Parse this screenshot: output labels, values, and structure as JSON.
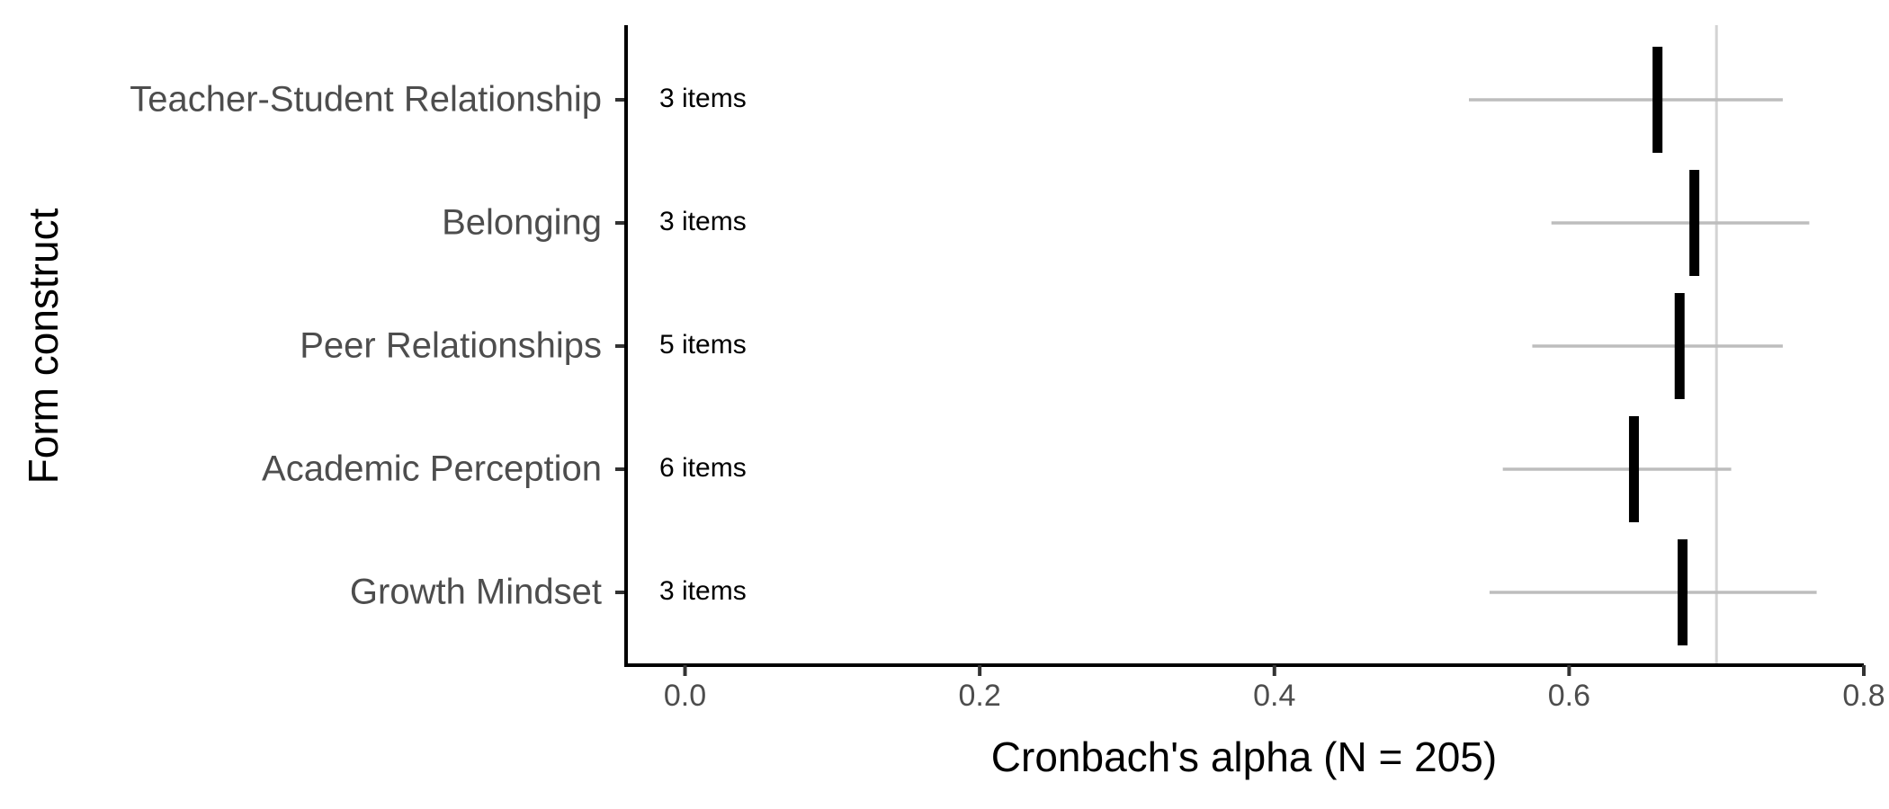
{
  "chart_data": {
    "type": "forest",
    "xlabel": "Cronbach's alpha (N = 205)",
    "ylabel": "Form construct",
    "xlim": [
      -0.04,
      0.8
    ],
    "x_ticks": [
      0.0,
      0.2,
      0.4,
      0.6,
      0.8
    ],
    "x_tick_labels": [
      "0.0",
      "0.2",
      "0.4",
      "0.6",
      "0.8"
    ],
    "reference_line": 0.7,
    "grid": false,
    "colors": {
      "estimate": "#000000",
      "interval": "#bdbdbd",
      "reference": "#d3d3d3",
      "axis": "#000000",
      "tick_text": "#4d4d4d"
    },
    "rows": [
      {
        "category": "Teacher-Student Relationship",
        "items_label": "3 items",
        "alpha": 0.66,
        "ci_low": 0.532,
        "ci_high": 0.745
      },
      {
        "category": "Belonging",
        "items_label": "3 items",
        "alpha": 0.685,
        "ci_low": 0.588,
        "ci_high": 0.763
      },
      {
        "category": "Peer Relationships",
        "items_label": "5 items",
        "alpha": 0.675,
        "ci_low": 0.575,
        "ci_high": 0.745
      },
      {
        "category": "Academic Perception",
        "items_label": "6 items",
        "alpha": 0.644,
        "ci_low": 0.555,
        "ci_high": 0.71
      },
      {
        "category": "Growth Mindset",
        "items_label": "3 items",
        "alpha": 0.677,
        "ci_low": 0.546,
        "ci_high": 0.768
      }
    ]
  }
}
